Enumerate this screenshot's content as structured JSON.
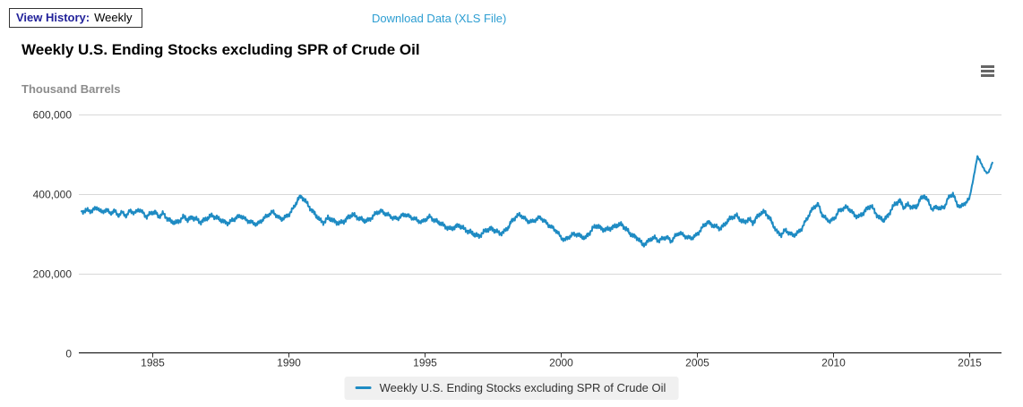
{
  "header": {
    "view_history_label": "View History:",
    "view_history_value": "Weekly",
    "download_link": "Download Data (XLS File)"
  },
  "chart": {
    "title": "Weekly U.S. Ending Stocks excluding SPR of Crude Oil",
    "unit_label": "Thousand Barrels"
  },
  "legend": {
    "items": [
      {
        "label": "Weekly U.S. Ending Stocks excluding SPR of Crude Oil",
        "color": "#1e8bc3"
      }
    ]
  },
  "colors": {
    "series_blue": "#1e8bc3",
    "link_blue": "#2d9ed2",
    "view_history_navy": "#22229a",
    "gridline_gray": "#d8d8d8",
    "unit_label_gray": "#8c8c8c",
    "menu_icon_gray": "#666666",
    "legend_bg": "#f0f0f0"
  },
  "chart_data": {
    "type": "line",
    "title": "Weekly U.S. Ending Stocks excluding SPR of Crude Oil",
    "xlabel": "",
    "ylabel": "Thousand Barrels",
    "x_range": [
      1982.4,
      2015.85
    ],
    "ylim": [
      0,
      600000
    ],
    "grid": true,
    "legend_position": "bottom",
    "yticks": [
      {
        "value": 0,
        "label": "0"
      },
      {
        "value": 200000,
        "label": "200,000"
      },
      {
        "value": 400000,
        "label": "400,000"
      },
      {
        "value": 600000,
        "label": "600,000"
      }
    ],
    "xticks": [
      {
        "value": 1985,
        "label": "1985"
      },
      {
        "value": 1990,
        "label": "1990"
      },
      {
        "value": 1995,
        "label": "1995"
      },
      {
        "value": 2000,
        "label": "2000"
      },
      {
        "value": 2005,
        "label": "2005"
      },
      {
        "value": 2010,
        "label": "2010"
      },
      {
        "value": 2015,
        "label": "2015"
      }
    ],
    "series": [
      {
        "name": "Weekly U.S. Ending Stocks excluding SPR of Crude Oil",
        "color": "#1e8bc3",
        "unit": "thousand barrels",
        "points": [
          [
            1982.4,
            352000
          ],
          [
            1982.55,
            359000
          ],
          [
            1982.7,
            355000
          ],
          [
            1982.85,
            361000
          ],
          [
            1983.0,
            364000
          ],
          [
            1983.15,
            352000
          ],
          [
            1983.3,
            361000
          ],
          [
            1983.45,
            350000
          ],
          [
            1983.6,
            357000
          ],
          [
            1983.75,
            346000
          ],
          [
            1983.9,
            353000
          ],
          [
            1984.05,
            344000
          ],
          [
            1984.2,
            358000
          ],
          [
            1984.35,
            350000
          ],
          [
            1984.5,
            361000
          ],
          [
            1984.65,
            352000
          ],
          [
            1984.8,
            342000
          ],
          [
            1984.95,
            351000
          ],
          [
            1985.1,
            354000
          ],
          [
            1985.25,
            342000
          ],
          [
            1985.4,
            350000
          ],
          [
            1985.55,
            338000
          ],
          [
            1985.7,
            330000
          ],
          [
            1985.85,
            326000
          ],
          [
            1986.0,
            333000
          ],
          [
            1986.15,
            342000
          ],
          [
            1986.3,
            334000
          ],
          [
            1986.45,
            341000
          ],
          [
            1986.6,
            336000
          ],
          [
            1986.75,
            328000
          ],
          [
            1986.9,
            334000
          ],
          [
            1987.05,
            339000
          ],
          [
            1987.2,
            346000
          ],
          [
            1987.35,
            340000
          ],
          [
            1987.5,
            334000
          ],
          [
            1987.65,
            329000
          ],
          [
            1987.8,
            326000
          ],
          [
            1987.95,
            333000
          ],
          [
            1988.1,
            341000
          ],
          [
            1988.25,
            344000
          ],
          [
            1988.4,
            336000
          ],
          [
            1988.55,
            331000
          ],
          [
            1988.7,
            326000
          ],
          [
            1988.85,
            323000
          ],
          [
            1989.0,
            332000
          ],
          [
            1989.15,
            341000
          ],
          [
            1989.3,
            349000
          ],
          [
            1989.45,
            354000
          ],
          [
            1989.6,
            342000
          ],
          [
            1989.75,
            336000
          ],
          [
            1989.9,
            341000
          ],
          [
            1990.05,
            351000
          ],
          [
            1990.2,
            365000
          ],
          [
            1990.35,
            386000
          ],
          [
            1990.45,
            393000
          ],
          [
            1990.55,
            388000
          ],
          [
            1990.7,
            373000
          ],
          [
            1990.85,
            359000
          ],
          [
            1991.0,
            347000
          ],
          [
            1991.15,
            333000
          ],
          [
            1991.3,
            328000
          ],
          [
            1991.45,
            339000
          ],
          [
            1991.6,
            334000
          ],
          [
            1991.75,
            329000
          ],
          [
            1991.9,
            325000
          ],
          [
            1992.05,
            331000
          ],
          [
            1992.2,
            341000
          ],
          [
            1992.35,
            347000
          ],
          [
            1992.5,
            342000
          ],
          [
            1992.65,
            337000
          ],
          [
            1992.8,
            331000
          ],
          [
            1992.95,
            334000
          ],
          [
            1993.1,
            343000
          ],
          [
            1993.25,
            352000
          ],
          [
            1993.4,
            357000
          ],
          [
            1993.55,
            350000
          ],
          [
            1993.7,
            345000
          ],
          [
            1993.85,
            339000
          ],
          [
            1994.0,
            337000
          ],
          [
            1994.15,
            344000
          ],
          [
            1994.3,
            348000
          ],
          [
            1994.45,
            342000
          ],
          [
            1994.6,
            338000
          ],
          [
            1994.75,
            332000
          ],
          [
            1994.9,
            329000
          ],
          [
            1995.05,
            336000
          ],
          [
            1995.2,
            342000
          ],
          [
            1995.35,
            334000
          ],
          [
            1995.5,
            328000
          ],
          [
            1995.65,
            323000
          ],
          [
            1995.8,
            316000
          ],
          [
            1995.95,
            310000
          ],
          [
            1996.1,
            316000
          ],
          [
            1996.25,
            321000
          ],
          [
            1996.4,
            313000
          ],
          [
            1996.55,
            308000
          ],
          [
            1996.7,
            303000
          ],
          [
            1996.85,
            296000
          ],
          [
            1997.0,
            294000
          ],
          [
            1997.15,
            302000
          ],
          [
            1997.3,
            309000
          ],
          [
            1997.45,
            313000
          ],
          [
            1997.6,
            306000
          ],
          [
            1997.75,
            300000
          ],
          [
            1997.9,
            304000
          ],
          [
            1998.05,
            313000
          ],
          [
            1998.2,
            331000
          ],
          [
            1998.35,
            342000
          ],
          [
            1998.5,
            347000
          ],
          [
            1998.65,
            339000
          ],
          [
            1998.8,
            331000
          ],
          [
            1998.95,
            329000
          ],
          [
            1999.1,
            336000
          ],
          [
            1999.25,
            340000
          ],
          [
            1999.4,
            331000
          ],
          [
            1999.55,
            321000
          ],
          [
            1999.7,
            314000
          ],
          [
            1999.85,
            306000
          ],
          [
            2000.0,
            290000
          ],
          [
            2000.15,
            284000
          ],
          [
            2000.3,
            291000
          ],
          [
            2000.45,
            297000
          ],
          [
            2000.6,
            299000
          ],
          [
            2000.75,
            292000
          ],
          [
            2000.9,
            288000
          ],
          [
            2001.05,
            302000
          ],
          [
            2001.2,
            314000
          ],
          [
            2001.35,
            320000
          ],
          [
            2001.5,
            312000
          ],
          [
            2001.65,
            308000
          ],
          [
            2001.8,
            313000
          ],
          [
            2001.95,
            317000
          ],
          [
            2002.1,
            321000
          ],
          [
            2002.25,
            323000
          ],
          [
            2002.4,
            311000
          ],
          [
            2002.55,
            299000
          ],
          [
            2002.7,
            293000
          ],
          [
            2002.85,
            287000
          ],
          [
            2003.0,
            271000
          ],
          [
            2003.15,
            277000
          ],
          [
            2003.3,
            286000
          ],
          [
            2003.45,
            289000
          ],
          [
            2003.6,
            282000
          ],
          [
            2003.75,
            287000
          ],
          [
            2003.9,
            291000
          ],
          [
            2004.05,
            280000
          ],
          [
            2004.2,
            293000
          ],
          [
            2004.35,
            302000
          ],
          [
            2004.5,
            296000
          ],
          [
            2004.65,
            290000
          ],
          [
            2004.8,
            288000
          ],
          [
            2004.95,
            294000
          ],
          [
            2005.1,
            306000
          ],
          [
            2005.25,
            319000
          ],
          [
            2005.4,
            329000
          ],
          [
            2005.55,
            322000
          ],
          [
            2005.7,
            316000
          ],
          [
            2005.85,
            313000
          ],
          [
            2006.0,
            321000
          ],
          [
            2006.15,
            333000
          ],
          [
            2006.3,
            342000
          ],
          [
            2006.45,
            345000
          ],
          [
            2006.6,
            333000
          ],
          [
            2006.75,
            329000
          ],
          [
            2006.9,
            336000
          ],
          [
            2007.05,
            326000
          ],
          [
            2007.2,
            341000
          ],
          [
            2007.35,
            351000
          ],
          [
            2007.5,
            354000
          ],
          [
            2007.65,
            341000
          ],
          [
            2007.8,
            321000
          ],
          [
            2007.95,
            303000
          ],
          [
            2008.1,
            297000
          ],
          [
            2008.25,
            308000
          ],
          [
            2008.4,
            301000
          ],
          [
            2008.55,
            295000
          ],
          [
            2008.7,
            301000
          ],
          [
            2008.85,
            313000
          ],
          [
            2009.0,
            332000
          ],
          [
            2009.15,
            351000
          ],
          [
            2009.3,
            367000
          ],
          [
            2009.45,
            373000
          ],
          [
            2009.6,
            347000
          ],
          [
            2009.75,
            336000
          ],
          [
            2009.9,
            331000
          ],
          [
            2010.05,
            338000
          ],
          [
            2010.2,
            355000
          ],
          [
            2010.35,
            363000
          ],
          [
            2010.5,
            366000
          ],
          [
            2010.65,
            357000
          ],
          [
            2010.8,
            346000
          ],
          [
            2010.95,
            341000
          ],
          [
            2011.1,
            351000
          ],
          [
            2011.25,
            363000
          ],
          [
            2011.4,
            369000
          ],
          [
            2011.55,
            353000
          ],
          [
            2011.7,
            339000
          ],
          [
            2011.85,
            333000
          ],
          [
            2012.0,
            343000
          ],
          [
            2012.15,
            362000
          ],
          [
            2012.3,
            375000
          ],
          [
            2012.45,
            383000
          ],
          [
            2012.6,
            365000
          ],
          [
            2012.75,
            372000
          ],
          [
            2012.9,
            367000
          ],
          [
            2013.05,
            365000
          ],
          [
            2013.2,
            386000
          ],
          [
            2013.35,
            396000
          ],
          [
            2013.5,
            379000
          ],
          [
            2013.65,
            360000
          ],
          [
            2013.8,
            368000
          ],
          [
            2013.95,
            361000
          ],
          [
            2014.1,
            369000
          ],
          [
            2014.25,
            391000
          ],
          [
            2014.4,
            400000
          ],
          [
            2014.55,
            373000
          ],
          [
            2014.7,
            367000
          ],
          [
            2014.85,
            377000
          ],
          [
            2015.0,
            386000
          ],
          [
            2015.08,
            413000
          ],
          [
            2015.16,
            442000
          ],
          [
            2015.24,
            470000
          ],
          [
            2015.3,
            493000
          ],
          [
            2015.38,
            486000
          ],
          [
            2015.48,
            469000
          ],
          [
            2015.58,
            457000
          ],
          [
            2015.68,
            452000
          ],
          [
            2015.76,
            460000
          ],
          [
            2015.85,
            478000
          ]
        ]
      }
    ]
  }
}
